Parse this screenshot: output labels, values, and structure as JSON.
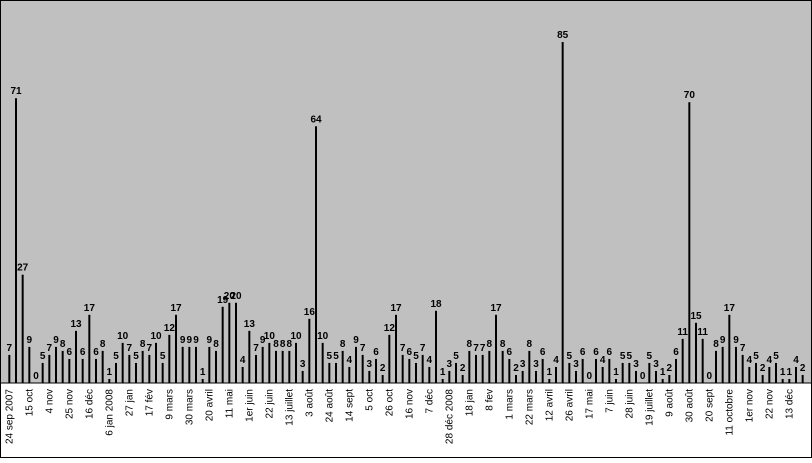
{
  "chart_data": {
    "type": "bar",
    "categories": [
      "24 sep 2007",
      null,
      null,
      "15 oct",
      null,
      null,
      "4 nov",
      null,
      null,
      "25 nov",
      null,
      null,
      "16 déc",
      null,
      null,
      "6 jan 2008",
      null,
      null,
      "27 jan",
      null,
      null,
      "17 fév",
      null,
      null,
      "9 mars",
      null,
      null,
      "30 mars",
      null,
      null,
      "20 avril",
      null,
      null,
      "11 mai",
      null,
      null,
      "1er juin",
      null,
      null,
      "22 juin",
      null,
      null,
      "13 juillet",
      null,
      null,
      "3 août",
      null,
      null,
      "24 août",
      null,
      null,
      "14 sept",
      null,
      null,
      "5 oct",
      null,
      null,
      "26 oct",
      null,
      null,
      "16 nov",
      null,
      null,
      "7 déc",
      null,
      null,
      "28 déc 2008",
      null,
      null,
      "18 jan",
      null,
      null,
      "8 fev",
      null,
      null,
      "1 mars",
      null,
      null,
      "22 mars",
      null,
      null,
      "12 avril",
      null,
      null,
      "26 avril",
      null,
      null,
      "17 mai",
      null,
      null,
      "7 juin",
      null,
      null,
      "28 juin",
      null,
      null,
      "19 juillet",
      null,
      null,
      "9 août",
      null,
      null,
      "30 août",
      null,
      null,
      "20 sept",
      null,
      null,
      "11 octobre",
      null,
      null,
      "1er nov",
      null,
      null,
      "22 nov",
      null,
      null,
      "13 déc",
      null,
      null
    ],
    "values": [
      7,
      71,
      27,
      9,
      0,
      5,
      7,
      9,
      8,
      6,
      13,
      6,
      17,
      6,
      8,
      1,
      5,
      10,
      7,
      5,
      8,
      7,
      10,
      5,
      12,
      17,
      9,
      9,
      9,
      1,
      9,
      8,
      19,
      20,
      20,
      4,
      13,
      7,
      9,
      10,
      8,
      8,
      8,
      10,
      3,
      16,
      64,
      10,
      5,
      5,
      8,
      4,
      9,
      7,
      3,
      6,
      2,
      12,
      17,
      7,
      6,
      5,
      7,
      4,
      18,
      1,
      3,
      5,
      2,
      8,
      7,
      7,
      8,
      17,
      8,
      6,
      2,
      3,
      8,
      3,
      6,
      1,
      4,
      85,
      5,
      3,
      6,
      0,
      6,
      4,
      6,
      1,
      5,
      5,
      3,
      0,
      5,
      3,
      1,
      2,
      6,
      11,
      70,
      15,
      11,
      0,
      8,
      9,
      17,
      9,
      7,
      4,
      5,
      2,
      4,
      5,
      1,
      1,
      4,
      2
    ],
    "color": "#000000",
    "ylim": [
      0,
      90
    ]
  }
}
